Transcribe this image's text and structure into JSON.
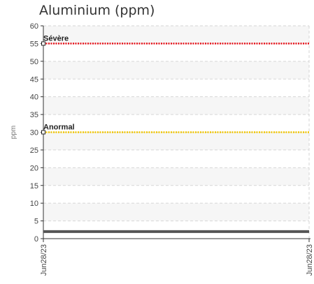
{
  "chart_data": {
    "type": "line",
    "title": "Aluminium (ppm)",
    "ylabel": "ppm",
    "xlabel": "",
    "ylim": [
      0,
      60
    ],
    "yticks": [
      0,
      5,
      10,
      15,
      20,
      25,
      30,
      35,
      40,
      45,
      50,
      55,
      60
    ],
    "x": [
      "Jun28/23",
      "Jun28/23"
    ],
    "series": [
      {
        "values": [
          2,
          2
        ],
        "color": "#555555"
      }
    ],
    "thresholds": [
      {
        "label": "Sévère",
        "value": 55,
        "color": "#e8121a"
      },
      {
        "label": "Anormal",
        "value": 30,
        "color": "#f2c500"
      }
    ],
    "grid": true
  }
}
